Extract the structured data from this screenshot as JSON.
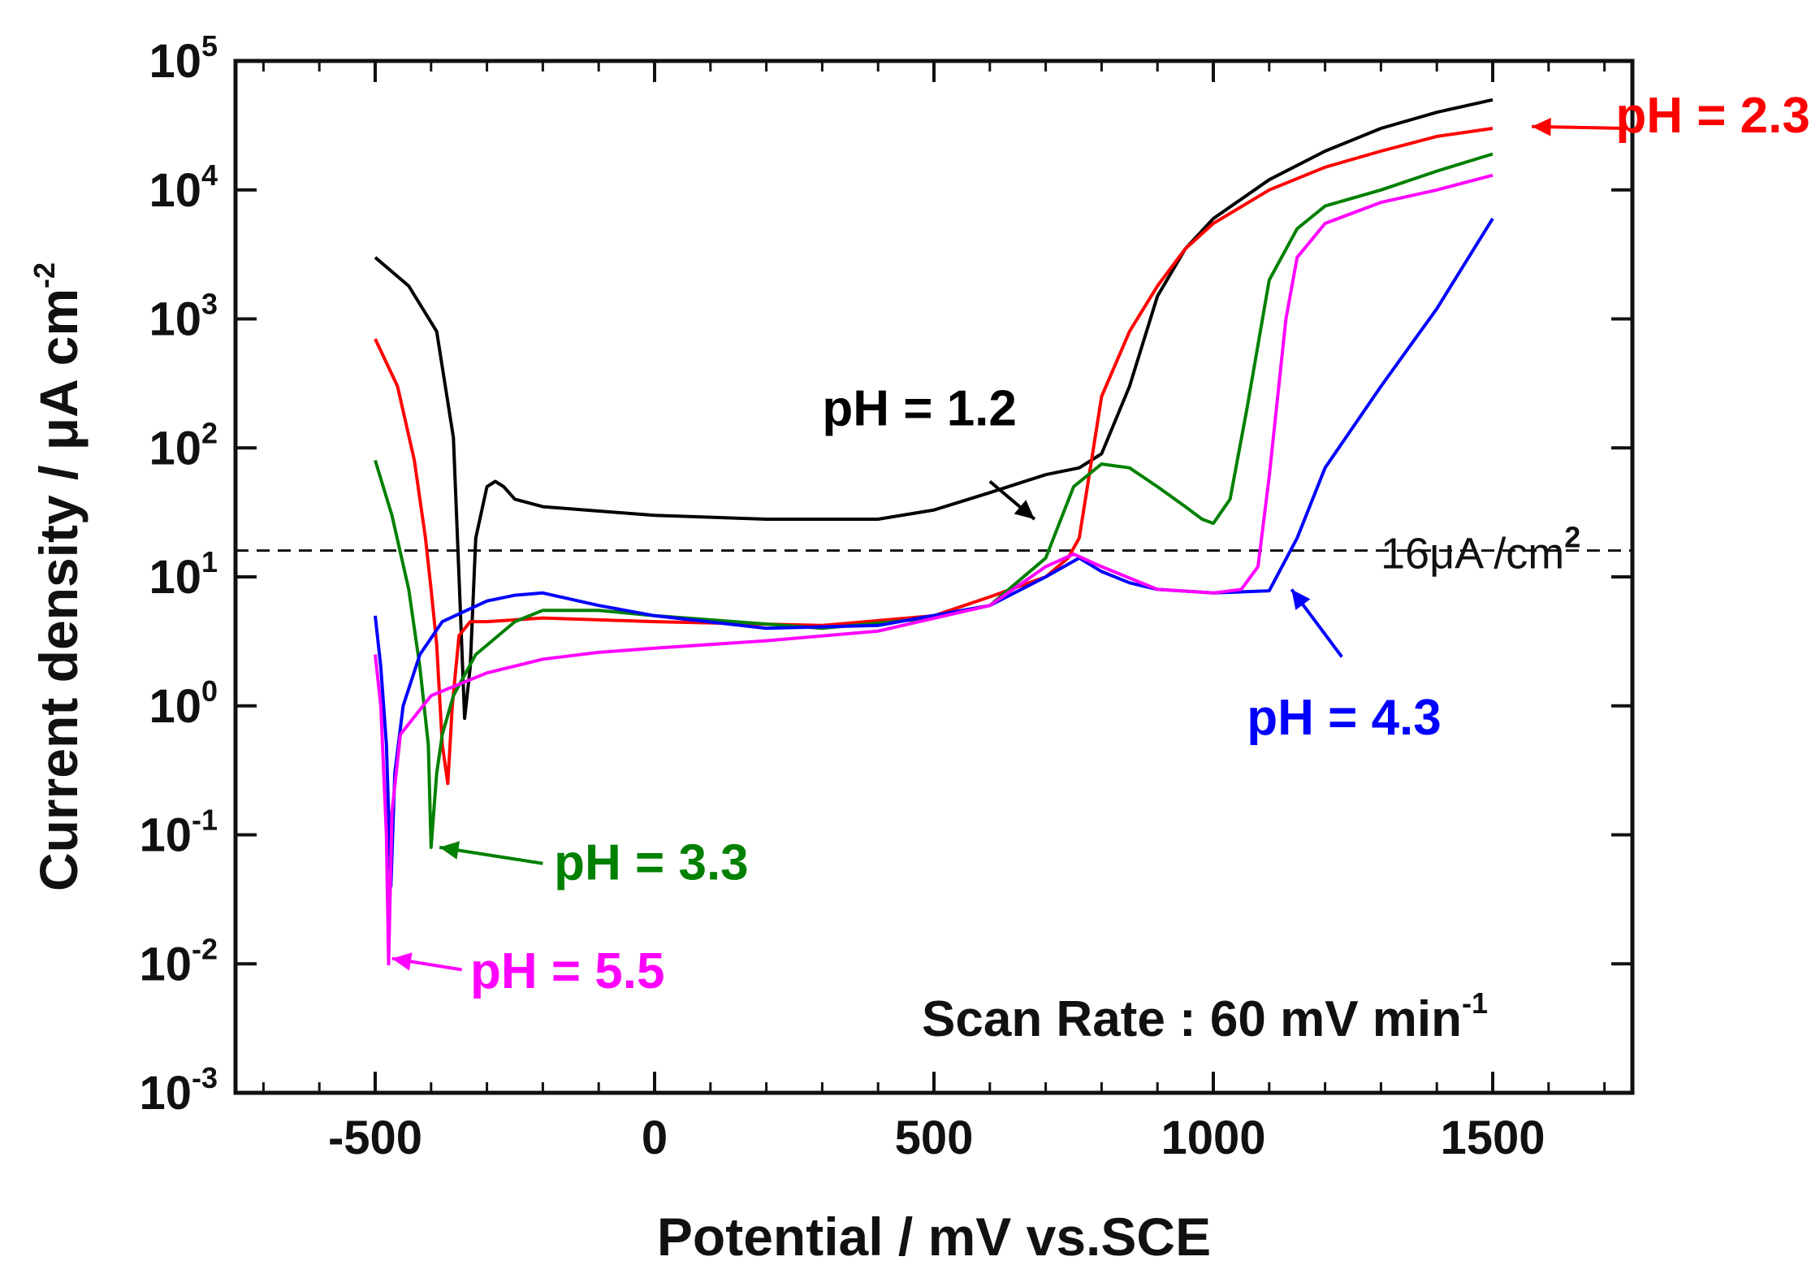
{
  "chart_data": {
    "type": "line",
    "title": "",
    "xlabel": "Potential / mV vs.SCE",
    "ylabel": "Current density / μA cm",
    "ylabel_exponent": "-2",
    "xlim": [
      -750,
      1750
    ],
    "ylim_log10": [
      -3,
      5
    ],
    "yscale": "log",
    "x_ticks": [
      -500,
      0,
      500,
      1000,
      1500
    ],
    "x_tick_labels": [
      "-500",
      "0",
      "500",
      "1000",
      "1500"
    ],
    "y_ticks": [
      {
        "base": "10",
        "exp": "5"
      },
      {
        "base": "10",
        "exp": "4"
      },
      {
        "base": "10",
        "exp": "3"
      },
      {
        "base": "10",
        "exp": "2"
      },
      {
        "base": "10",
        "exp": "1"
      },
      {
        "base": "10",
        "exp": "0"
      },
      {
        "base": "10",
        "exp": "-1"
      },
      {
        "base": "10",
        "exp": "-2"
      },
      {
        "base": "10",
        "exp": "-3"
      }
    ],
    "grid": false,
    "reference_line": {
      "y": 16,
      "label": "16μA /cm",
      "label_exponent": "2"
    },
    "scan_rate": {
      "text": "Scan Rate : 60 mV min",
      "exponent": "-1"
    },
    "series": [
      {
        "label": "pH = 1.2",
        "color": "#000000",
        "points": [
          [
            -500,
            3000
          ],
          [
            -440,
            1800
          ],
          [
            -390,
            800
          ],
          [
            -360,
            120
          ],
          [
            -350,
            10
          ],
          [
            -340,
            0.8
          ],
          [
            -330,
            2
          ],
          [
            -320,
            20
          ],
          [
            -300,
            50
          ],
          [
            -285,
            55
          ],
          [
            -270,
            50
          ],
          [
            -250,
            40
          ],
          [
            -200,
            35
          ],
          [
            0,
            30
          ],
          [
            200,
            28
          ],
          [
            400,
            28
          ],
          [
            500,
            33
          ],
          [
            600,
            45
          ],
          [
            700,
            62
          ],
          [
            760,
            70
          ],
          [
            800,
            90
          ],
          [
            850,
            300
          ],
          [
            900,
            1500
          ],
          [
            950,
            3500
          ],
          [
            1000,
            6000
          ],
          [
            1100,
            12000
          ],
          [
            1200,
            20000
          ],
          [
            1300,
            30000
          ],
          [
            1400,
            40000
          ],
          [
            1500,
            50000
          ]
        ]
      },
      {
        "label": "pH = 2.3",
        "color": "#ff0000",
        "points": [
          [
            -500,
            700
          ],
          [
            -460,
            300
          ],
          [
            -430,
            80
          ],
          [
            -410,
            20
          ],
          [
            -400,
            8
          ],
          [
            -390,
            3
          ],
          [
            -380,
            0.5
          ],
          [
            -370,
            0.25
          ],
          [
            -362,
            1
          ],
          [
            -350,
            3.5
          ],
          [
            -330,
            4.5
          ],
          [
            -300,
            4.5
          ],
          [
            -200,
            4.8
          ],
          [
            0,
            4.5
          ],
          [
            300,
            4.2
          ],
          [
            500,
            5
          ],
          [
            600,
            7
          ],
          [
            700,
            10
          ],
          [
            740,
            14
          ],
          [
            760,
            20
          ],
          [
            780,
            70
          ],
          [
            800,
            250
          ],
          [
            850,
            800
          ],
          [
            900,
            1800
          ],
          [
            950,
            3500
          ],
          [
            1000,
            5500
          ],
          [
            1100,
            10000
          ],
          [
            1200,
            15000
          ],
          [
            1300,
            20000
          ],
          [
            1400,
            26000
          ],
          [
            1500,
            30000
          ]
        ]
      },
      {
        "label": "pH = 3.3",
        "color": "#008000",
        "points": [
          [
            -500,
            80
          ],
          [
            -470,
            30
          ],
          [
            -440,
            8
          ],
          [
            -420,
            2
          ],
          [
            -405,
            0.5
          ],
          [
            -400,
            0.08
          ],
          [
            -390,
            0.3
          ],
          [
            -380,
            0.6
          ],
          [
            -360,
            1.2
          ],
          [
            -320,
            2.5
          ],
          [
            -250,
            4.5
          ],
          [
            -200,
            5.5
          ],
          [
            -100,
            5.5
          ],
          [
            0,
            5
          ],
          [
            300,
            4
          ],
          [
            500,
            4.8
          ],
          [
            600,
            6
          ],
          [
            700,
            14
          ],
          [
            750,
            50
          ],
          [
            800,
            75
          ],
          [
            850,
            70
          ],
          [
            900,
            50
          ],
          [
            950,
            35
          ],
          [
            980,
            28
          ],
          [
            1000,
            26
          ],
          [
            1030,
            40
          ],
          [
            1060,
            200
          ],
          [
            1100,
            2000
          ],
          [
            1150,
            5000
          ],
          [
            1200,
            7500
          ],
          [
            1300,
            10000
          ],
          [
            1400,
            14000
          ],
          [
            1500,
            19000
          ]
        ]
      },
      {
        "label": "pH = 4.3",
        "color": "#0000ff",
        "points": [
          [
            -500,
            5
          ],
          [
            -490,
            2
          ],
          [
            -480,
            0.5
          ],
          [
            -472,
            0.04
          ],
          [
            -465,
            0.3
          ],
          [
            -450,
            1
          ],
          [
            -420,
            2.5
          ],
          [
            -380,
            4.5
          ],
          [
            -300,
            6.5
          ],
          [
            -250,
            7.2
          ],
          [
            -200,
            7.5
          ],
          [
            -100,
            6
          ],
          [
            0,
            5
          ],
          [
            200,
            4
          ],
          [
            400,
            4.2
          ],
          [
            600,
            6
          ],
          [
            700,
            10
          ],
          [
            760,
            14
          ],
          [
            800,
            11
          ],
          [
            850,
            9
          ],
          [
            900,
            8
          ],
          [
            1000,
            7.5
          ],
          [
            1100,
            7.8
          ],
          [
            1150,
            20
          ],
          [
            1200,
            70
          ],
          [
            1300,
            300
          ],
          [
            1400,
            1200
          ],
          [
            1500,
            6000
          ]
        ]
      },
      {
        "label": "pH = 5.5",
        "color": "#ff00ff",
        "points": [
          [
            -500,
            2.5
          ],
          [
            -490,
            1
          ],
          [
            -480,
            0.1
          ],
          [
            -476,
            0.01
          ],
          [
            -470,
            0.15
          ],
          [
            -455,
            0.6
          ],
          [
            -400,
            1.2
          ],
          [
            -300,
            1.8
          ],
          [
            -200,
            2.3
          ],
          [
            -100,
            2.6
          ],
          [
            0,
            2.8
          ],
          [
            200,
            3.2
          ],
          [
            400,
            3.8
          ],
          [
            600,
            6
          ],
          [
            700,
            12
          ],
          [
            750,
            15
          ],
          [
            800,
            12
          ],
          [
            900,
            8
          ],
          [
            1000,
            7.5
          ],
          [
            1050,
            8
          ],
          [
            1080,
            12
          ],
          [
            1100,
            60
          ],
          [
            1130,
            1000
          ],
          [
            1150,
            3000
          ],
          [
            1200,
            5500
          ],
          [
            1300,
            8000
          ],
          [
            1400,
            10000
          ],
          [
            1500,
            13000
          ]
        ]
      }
    ],
    "annotations": [
      {
        "text": "pH = 1.2",
        "color": "#000000"
      },
      {
        "text": "pH = 2.3",
        "color": "#ff0000"
      },
      {
        "text": "pH = 3.3",
        "color": "#008000"
      },
      {
        "text": "pH = 4.3",
        "color": "#0000ff"
      },
      {
        "text": "pH = 5.5",
        "color": "#ff00ff"
      }
    ]
  }
}
